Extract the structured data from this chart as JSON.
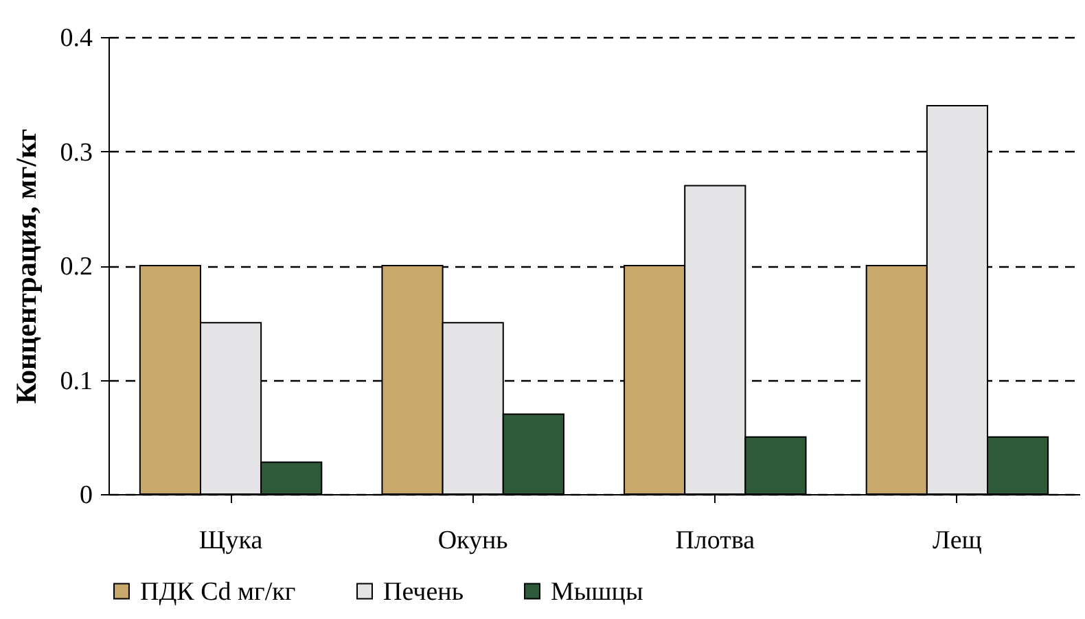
{
  "chart_data": {
    "type": "bar",
    "ylabel": "Концентрация, мг/кг",
    "categories": [
      "Щука",
      "Окунь",
      "Плотва",
      "Лещ"
    ],
    "series": [
      {
        "name": "ПДК Cd мг/кг",
        "color": "#c9a96b",
        "values": [
          0.2,
          0.2,
          0.2,
          0.2
        ]
      },
      {
        "name": "Печень",
        "color": "#e4e4e6",
        "values": [
          0.15,
          0.15,
          0.27,
          0.34
        ]
      },
      {
        "name": "Мышцы",
        "color": "#2f5a3a",
        "values": [
          0.028,
          0.07,
          0.05,
          0.05
        ]
      }
    ],
    "ylim": [
      0,
      0.4
    ],
    "yticks": [
      0,
      0.1,
      0.2,
      0.3,
      0.4
    ],
    "grid": "y",
    "legend": "bottom"
  }
}
